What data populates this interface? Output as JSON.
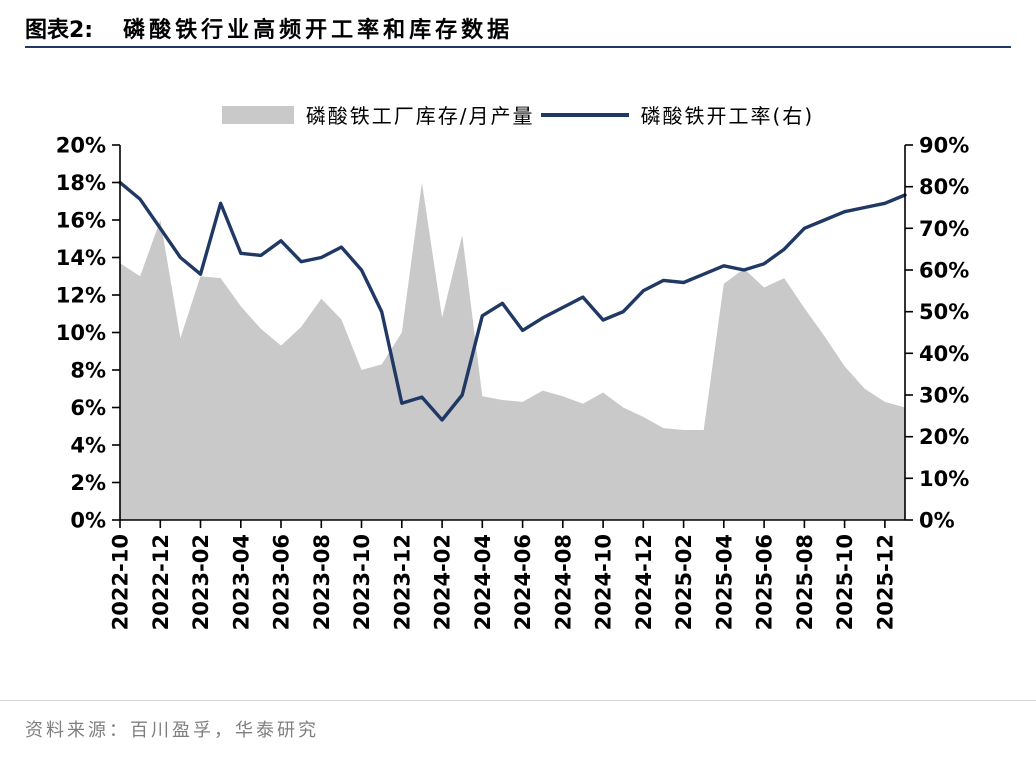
{
  "header": {
    "figure_label": "图表2:",
    "title": "磷酸铁行业高频开工率和库存数据"
  },
  "footer": {
    "source": "资料来源：百川盈孚，华泰研究"
  },
  "colors": {
    "accent_rule": "#1f3864",
    "area_series": "#c9c9c9",
    "line_series": "#1f3864",
    "axis": "#000000",
    "source_text": "#7f7f7f"
  },
  "chart_data": {
    "type": "area",
    "subtype": "combo-area-line-dual-axis",
    "title": "磷酸铁行业高频开工率和库存数据",
    "grid": false,
    "legend_position": "top",
    "x": [
      "2022-10",
      "2022-11",
      "2022-12",
      "2023-01",
      "2023-02",
      "2023-03",
      "2023-04",
      "2023-05",
      "2023-06",
      "2023-07",
      "2023-08",
      "2023-09",
      "2023-10",
      "2023-11",
      "2023-12",
      "2024-01",
      "2024-02",
      "2024-03",
      "2024-04",
      "2024-05",
      "2024-06",
      "2024-07",
      "2024-08",
      "2024-09",
      "2024-10",
      "2024-11",
      "2024-12",
      "2025-01",
      "2025-02",
      "2025-03",
      "2025-04",
      "2025-05",
      "2025-06",
      "2025-07",
      "2025-08",
      "2025-09",
      "2025-10",
      "2025-11",
      "2025-12",
      "2026-01"
    ],
    "x_tick_labels": [
      "2022-10",
      "2022-12",
      "2023-02",
      "2023-04",
      "2023-06",
      "2023-08",
      "2023-10",
      "2023-12",
      "2024-02",
      "2024-04",
      "2024-06",
      "2024-08",
      "2024-10",
      "2024-12",
      "2025-02",
      "2025-04",
      "2025-06",
      "2025-08",
      "2025-10",
      "2025-12"
    ],
    "x_tick_every": 2,
    "left_axis": {
      "min": 0,
      "max": 20,
      "step": 2,
      "suffix": "%",
      "tick_labels": [
        "0%",
        "2%",
        "4%",
        "6%",
        "8%",
        "10%",
        "12%",
        "14%",
        "16%",
        "18%",
        "20%"
      ]
    },
    "right_axis": {
      "min": 0,
      "max": 90,
      "step": 10,
      "suffix": "%",
      "tick_labels": [
        "0%",
        "10%",
        "20%",
        "30%",
        "40%",
        "50%",
        "60%",
        "70%",
        "80%",
        "90%"
      ]
    },
    "series": [
      {
        "name": "磷酸铁工厂库存/月产量",
        "type": "area",
        "axis": "left",
        "color": "#c9c9c9",
        "values": [
          13.7,
          13.0,
          16.0,
          9.7,
          13.0,
          12.9,
          11.4,
          10.2,
          9.3,
          10.3,
          11.8,
          10.7,
          8.0,
          8.3,
          10.0,
          18.0,
          10.8,
          15.2,
          6.6,
          6.4,
          6.3,
          6.9,
          6.6,
          6.2,
          6.8,
          6.0,
          5.5,
          4.9,
          4.8,
          4.8,
          12.6,
          13.4,
          12.4,
          12.9,
          11.3,
          9.8,
          8.2,
          7.0,
          6.3,
          6.0
        ]
      },
      {
        "name": "磷酸铁开工率(右)",
        "type": "line",
        "axis": "right",
        "color": "#1f3864",
        "values": [
          81,
          77,
          70,
          63,
          59,
          76,
          64,
          63.5,
          67,
          62,
          63,
          65.5,
          60,
          50,
          28,
          29.5,
          24,
          30,
          49,
          52,
          45.5,
          48.5,
          51,
          53.5,
          48,
          50,
          55,
          57.5,
          57,
          59,
          61,
          60,
          61.5,
          65,
          70,
          72,
          74,
          75,
          76,
          78
        ]
      }
    ]
  }
}
